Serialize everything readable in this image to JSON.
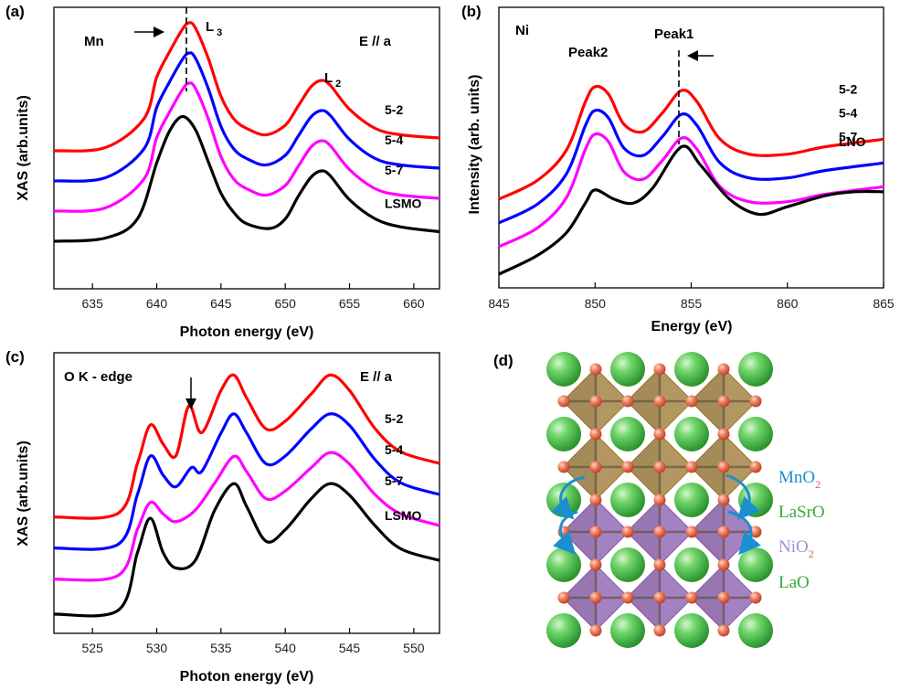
{
  "chart_data": [
    {
      "type": "line",
      "panel_label": "(a)",
      "xlabel": "Photon energy (eV)",
      "ylabel": "XAS (arb.units)",
      "xlim": [
        632,
        662
      ],
      "xticks": [
        "635",
        "640",
        "645",
        "650",
        "655",
        "660"
      ],
      "annotations": {
        "element": "Mn",
        "L3": "L",
        "L3_sub": "3",
        "L2": "L",
        "L2_sub": "2",
        "polarization": "E // a"
      },
      "series": [
        {
          "name": "5-2",
          "color": "#ff0000",
          "offset": 3,
          "points": [
            [
              632,
              0.16
            ],
            [
              636,
              0.18
            ],
            [
              639,
              0.36
            ],
            [
              640,
              0.62
            ],
            [
              641,
              0.78
            ],
            [
              642,
              0.92
            ],
            [
              642.5,
              0.96
            ],
            [
              643,
              0.93
            ],
            [
              644,
              0.74
            ],
            [
              645,
              0.5
            ],
            [
              646,
              0.36
            ],
            [
              647,
              0.3
            ],
            [
              648.5,
              0.26
            ],
            [
              650,
              0.32
            ],
            [
              651,
              0.44
            ],
            [
              652,
              0.56
            ],
            [
              652.8,
              0.6
            ],
            [
              653.5,
              0.57
            ],
            [
              655,
              0.42
            ],
            [
              657,
              0.3
            ],
            [
              659,
              0.26
            ],
            [
              662,
              0.24
            ]
          ]
        },
        {
          "name": "5-4",
          "color": "#0000ff",
          "offset": 2,
          "points": [
            [
              632,
              0.16
            ],
            [
              636,
              0.18
            ],
            [
              639,
              0.36
            ],
            [
              640,
              0.62
            ],
            [
              641,
              0.78
            ],
            [
              642,
              0.92
            ],
            [
              642.5,
              0.96
            ],
            [
              643,
              0.93
            ],
            [
              644,
              0.74
            ],
            [
              645,
              0.5
            ],
            [
              646,
              0.36
            ],
            [
              647,
              0.3
            ],
            [
              648.5,
              0.26
            ],
            [
              650,
              0.32
            ],
            [
              651,
              0.44
            ],
            [
              652,
              0.56
            ],
            [
              652.8,
              0.6
            ],
            [
              653.5,
              0.57
            ],
            [
              655,
              0.42
            ],
            [
              657,
              0.3
            ],
            [
              659,
              0.26
            ],
            [
              662,
              0.24
            ]
          ]
        },
        {
          "name": "5-7",
          "color": "#ff00ff",
          "offset": 1,
          "points": [
            [
              632,
              0.16
            ],
            [
              636,
              0.18
            ],
            [
              639,
              0.36
            ],
            [
              640,
              0.62
            ],
            [
              641,
              0.78
            ],
            [
              642,
              0.92
            ],
            [
              642.5,
              0.96
            ],
            [
              643,
              0.93
            ],
            [
              644,
              0.74
            ],
            [
              645,
              0.5
            ],
            [
              646,
              0.36
            ],
            [
              647,
              0.3
            ],
            [
              648.5,
              0.26
            ],
            [
              650,
              0.32
            ],
            [
              651,
              0.44
            ],
            [
              652,
              0.56
            ],
            [
              652.8,
              0.6
            ],
            [
              653.5,
              0.57
            ],
            [
              655,
              0.42
            ],
            [
              657,
              0.3
            ],
            [
              659,
              0.26
            ],
            [
              662,
              0.24
            ]
          ]
        },
        {
          "name": "LSMO",
          "color": "#000000",
          "offset": 0,
          "points": [
            [
              632,
              0.16
            ],
            [
              636,
              0.18
            ],
            [
              638.5,
              0.3
            ],
            [
              640,
              0.65
            ],
            [
              641,
              0.85
            ],
            [
              642,
              0.94
            ],
            [
              643,
              0.86
            ],
            [
              644,
              0.66
            ],
            [
              645,
              0.46
            ],
            [
              646,
              0.34
            ],
            [
              647,
              0.27
            ],
            [
              648.8,
              0.24
            ],
            [
              650,
              0.3
            ],
            [
              651,
              0.44
            ],
            [
              652,
              0.56
            ],
            [
              652.8,
              0.6
            ],
            [
              653.5,
              0.57
            ],
            [
              655,
              0.42
            ],
            [
              657,
              0.3
            ],
            [
              659,
              0.25
            ],
            [
              662,
              0.22
            ]
          ]
        }
      ]
    },
    {
      "type": "line",
      "panel_label": "(b)",
      "xlabel": "Energy (eV)",
      "ylabel": "Intensity (arb. units)",
      "xlim": [
        845,
        865
      ],
      "xticks": [
        "845",
        "850",
        "855",
        "860",
        "865"
      ],
      "annotations": {
        "element": "Ni",
        "peak1": "Peak1",
        "peak2": "Peak2"
      },
      "series": [
        {
          "name": "5-2",
          "color": "#ff0000",
          "offset": 3,
          "points": [
            [
              845,
              0.02
            ],
            [
              847,
              0.12
            ],
            [
              848.5,
              0.28
            ],
            [
              849.5,
              0.54
            ],
            [
              850,
              0.62
            ],
            [
              850.7,
              0.58
            ],
            [
              851.5,
              0.42
            ],
            [
              852.5,
              0.38
            ],
            [
              853.5,
              0.48
            ],
            [
              854.5,
              0.6
            ],
            [
              855.3,
              0.54
            ],
            [
              856.5,
              0.34
            ],
            [
              858,
              0.26
            ],
            [
              860,
              0.26
            ],
            [
              862,
              0.3
            ],
            [
              865,
              0.34
            ]
          ]
        },
        {
          "name": "5-4",
          "color": "#0000ff",
          "offset": 2,
          "points": [
            [
              845,
              0.02
            ],
            [
              847,
              0.12
            ],
            [
              848.5,
              0.28
            ],
            [
              849.5,
              0.54
            ],
            [
              850,
              0.62
            ],
            [
              850.7,
              0.58
            ],
            [
              851.5,
              0.42
            ],
            [
              852.5,
              0.38
            ],
            [
              853.5,
              0.48
            ],
            [
              854.5,
              0.6
            ],
            [
              855.3,
              0.54
            ],
            [
              856.5,
              0.34
            ],
            [
              858,
              0.26
            ],
            [
              860,
              0.26
            ],
            [
              862,
              0.3
            ],
            [
              865,
              0.34
            ]
          ]
        },
        {
          "name": "5-7",
          "color": "#ff00ff",
          "offset": 1,
          "points": [
            [
              845,
              0.02
            ],
            [
              847,
              0.12
            ],
            [
              848.5,
              0.28
            ],
            [
              849.5,
              0.54
            ],
            [
              850,
              0.62
            ],
            [
              850.7,
              0.58
            ],
            [
              851.5,
              0.42
            ],
            [
              852.5,
              0.38
            ],
            [
              853.5,
              0.48
            ],
            [
              854.5,
              0.6
            ],
            [
              855.3,
              0.54
            ],
            [
              856.5,
              0.34
            ],
            [
              858,
              0.26
            ],
            [
              860,
              0.26
            ],
            [
              862,
              0.3
            ],
            [
              865,
              0.34
            ]
          ]
        },
        {
          "name": "LNO",
          "color": "#000000",
          "offset": 0,
          "points": [
            [
              845,
              0.0
            ],
            [
              847,
              0.1
            ],
            [
              848.5,
              0.22
            ],
            [
              849.5,
              0.38
            ],
            [
              850,
              0.45
            ],
            [
              851,
              0.4
            ],
            [
              852,
              0.38
            ],
            [
              853,
              0.46
            ],
            [
              854.5,
              0.68
            ],
            [
              855.5,
              0.58
            ],
            [
              857,
              0.4
            ],
            [
              858.5,
              0.32
            ],
            [
              860,
              0.36
            ],
            [
              862,
              0.42
            ],
            [
              863.5,
              0.44
            ],
            [
              865,
              0.44
            ]
          ]
        }
      ]
    },
    {
      "type": "line",
      "panel_label": "(c)",
      "xlabel": "Photon energy (eV)",
      "ylabel": "XAS (arb.units)",
      "xlim": [
        522,
        552
      ],
      "xticks": [
        "525",
        "530",
        "535",
        "540",
        "545",
        "550"
      ],
      "annotations": {
        "edge": "O K - edge",
        "polarization": "E // a"
      },
      "series": [
        {
          "name": "5-2",
          "color": "#ff0000",
          "offset": 3,
          "points": [
            [
              522,
              0.02
            ],
            [
              527,
              0.04
            ],
            [
              528.5,
              0.3
            ],
            [
              529.5,
              0.5
            ],
            [
              530.5,
              0.4
            ],
            [
              531.5,
              0.34
            ],
            [
              532.5,
              0.6
            ],
            [
              533.5,
              0.46
            ],
            [
              535,
              0.68
            ],
            [
              536,
              0.76
            ],
            [
              537,
              0.64
            ],
            [
              538.5,
              0.48
            ],
            [
              540,
              0.52
            ],
            [
              542,
              0.66
            ],
            [
              543.5,
              0.76
            ],
            [
              545,
              0.68
            ],
            [
              547,
              0.48
            ],
            [
              549,
              0.36
            ],
            [
              552,
              0.3
            ]
          ]
        },
        {
          "name": "5-4",
          "color": "#0000ff",
          "offset": 2,
          "points": [
            [
              522,
              0.02
            ],
            [
              527,
              0.04
            ],
            [
              528.5,
              0.3
            ],
            [
              529.5,
              0.5
            ],
            [
              530.5,
              0.4
            ],
            [
              531.5,
              0.34
            ],
            [
              532.7,
              0.44
            ],
            [
              533.5,
              0.42
            ],
            [
              535,
              0.62
            ],
            [
              536,
              0.72
            ],
            [
              537,
              0.62
            ],
            [
              538.5,
              0.46
            ],
            [
              540,
              0.5
            ],
            [
              542,
              0.64
            ],
            [
              543.5,
              0.72
            ],
            [
              545,
              0.66
            ],
            [
              547,
              0.48
            ],
            [
              549,
              0.36
            ],
            [
              552,
              0.3
            ]
          ]
        },
        {
          "name": "5-7",
          "color": "#ff00ff",
          "offset": 1,
          "points": [
            [
              522,
              0.02
            ],
            [
              527,
              0.04
            ],
            [
              528.5,
              0.28
            ],
            [
              529.5,
              0.42
            ],
            [
              530.5,
              0.36
            ],
            [
              531.5,
              0.32
            ],
            [
              533,
              0.38
            ],
            [
              534.5,
              0.52
            ],
            [
              536,
              0.66
            ],
            [
              537,
              0.58
            ],
            [
              538.5,
              0.44
            ],
            [
              540,
              0.48
            ],
            [
              542,
              0.6
            ],
            [
              543.5,
              0.68
            ],
            [
              545,
              0.62
            ],
            [
              547,
              0.46
            ],
            [
              549,
              0.36
            ],
            [
              552,
              0.3
            ]
          ]
        },
        {
          "name": "LSMO",
          "color": "#000000",
          "offset": 0,
          "points": [
            [
              522,
              0.0
            ],
            [
              527,
              0.02
            ],
            [
              528.5,
              0.32
            ],
            [
              529.5,
              0.5
            ],
            [
              530.5,
              0.32
            ],
            [
              531.5,
              0.24
            ],
            [
              533,
              0.28
            ],
            [
              534.5,
              0.54
            ],
            [
              536,
              0.68
            ],
            [
              537,
              0.56
            ],
            [
              538.5,
              0.38
            ],
            [
              540,
              0.44
            ],
            [
              542,
              0.6
            ],
            [
              543.5,
              0.68
            ],
            [
              545,
              0.62
            ],
            [
              547,
              0.46
            ],
            [
              549,
              0.34
            ],
            [
              552,
              0.28
            ]
          ]
        }
      ]
    }
  ],
  "panel_d": {
    "label": "(d)",
    "legend": [
      {
        "text": "MnO",
        "sub": "2",
        "color": "#1f8fd0",
        "sub_color": "#e06060"
      },
      {
        "text": "LaSrO",
        "sub": "",
        "color": "#3aa83a",
        "sub_color": ""
      },
      {
        "text": "NiO",
        "sub": "2",
        "color": "#a58fd0",
        "sub_color": "#e06060"
      },
      {
        "text": "LaO",
        "sub": "",
        "color": "#3aa83a",
        "sub_color": ""
      }
    ],
    "colors": {
      "mn_octahedra": "#9c7a34",
      "ni_octahedra": "#8a5db0",
      "sphere": "#3cb73c",
      "oxygen": "#e05a3a",
      "arrow": "#1a8fd0"
    }
  }
}
